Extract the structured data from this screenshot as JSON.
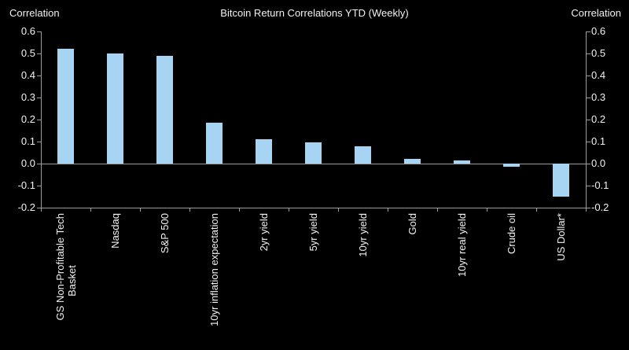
{
  "header": {
    "left_axis_title": "Correlation",
    "right_axis_title": "Correlation"
  },
  "chart_data": {
    "type": "bar",
    "title": "Bitcoin Return Correlations YTD (Weekly)",
    "ylabel_left": "Correlation",
    "ylabel_right": "Correlation",
    "ylim": [
      -0.2,
      0.6
    ],
    "ytick_step": 0.1,
    "yticks": [
      "0.6",
      "0.5",
      "0.4",
      "0.3",
      "0.2",
      "0.1",
      "0.0",
      "-0.1",
      "-0.2"
    ],
    "grid": "off",
    "legend": "none",
    "background_color": "#000000",
    "bar_color": "#a8d4f3",
    "axis_color": "#9c9c9c",
    "text_color": "#f2f2f2",
    "categories": [
      {
        "lines": [
          "GS Non-Profitable Tech",
          "Basket"
        ]
      },
      {
        "lines": [
          "Nasdaq"
        ]
      },
      {
        "lines": [
          "S&P 500"
        ]
      },
      {
        "lines": [
          "10yr inflation expectation"
        ]
      },
      {
        "lines": [
          "2yr yield"
        ]
      },
      {
        "lines": [
          "5yr yield"
        ]
      },
      {
        "lines": [
          "10yr yield"
        ]
      },
      {
        "lines": [
          "Gold"
        ]
      },
      {
        "lines": [
          "10yr real yield"
        ]
      },
      {
        "lines": [
          "Crude oil"
        ]
      },
      {
        "lines": [
          "US Dollar*"
        ]
      }
    ],
    "values": [
      0.52,
      0.5,
      0.49,
      0.185,
      0.11,
      0.095,
      0.08,
      0.02,
      0.015,
      -0.015,
      -0.15
    ]
  }
}
